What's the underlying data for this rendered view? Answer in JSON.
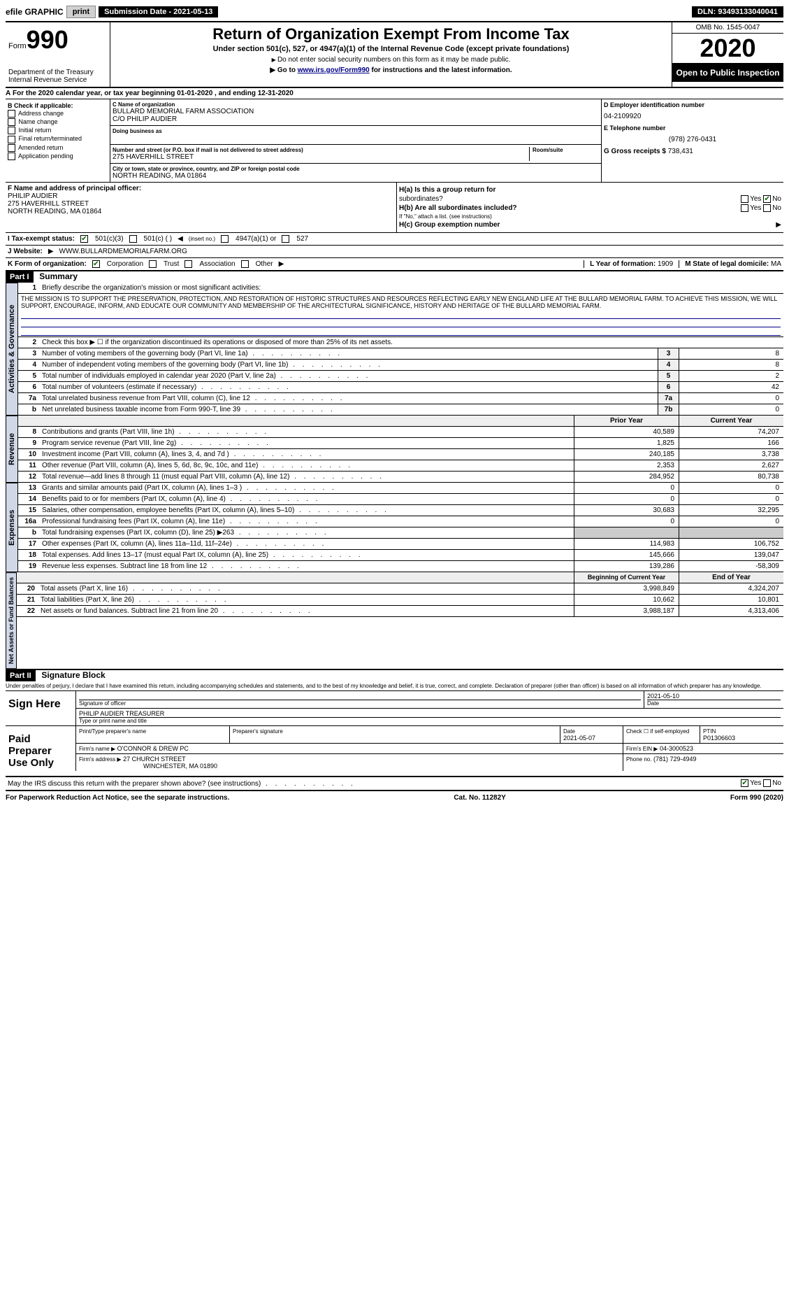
{
  "topbar": {
    "efile_label": "efile GRAPHIC",
    "print_btn": "print",
    "sub_date_label": "Submission Date - 2021-05-13",
    "dln": "DLN: 93493133040041"
  },
  "header": {
    "form_label": "Form",
    "form_num": "990",
    "dept1": "Department of the Treasury",
    "dept2": "Internal Revenue Service",
    "title": "Return of Organization Exempt From Income Tax",
    "subtitle": "Under section 501(c), 527, or 4947(a)(1) of the Internal Revenue Code (except private foundations)",
    "note1": "Do not enter social security numbers on this form as it may be made public.",
    "note2_pre": "Go to ",
    "note2_link": "www.irs.gov/Form990",
    "note2_post": " for instructions and the latest information.",
    "omb": "OMB No. 1545-0047",
    "year": "2020",
    "open_public": "Open to Public Inspection"
  },
  "section_a": {
    "period": "For the 2020 calendar year, or tax year beginning 01-01-2020    , and ending 12-31-2020",
    "b_label": "B Check if applicable:",
    "b_items": [
      "Address change",
      "Name change",
      "Initial return",
      "Final return/terminated",
      "Amended return",
      "Application pending"
    ],
    "c_name_label": "C Name of organization",
    "c_name": "BULLARD MEMORIAL FARM ASSOCIATION",
    "c_co": "C/O PHILIP AUDIER",
    "c_dba_label": "Doing business as",
    "c_addr_label": "Number and street (or P.O. box if mail is not delivered to street address)",
    "c_room_label": "Room/suite",
    "c_addr": "275 HAVERHILL STREET",
    "c_city_label": "City or town, state or province, country, and ZIP or foreign postal code",
    "c_city": "NORTH READING, MA  01864",
    "d_ein_label": "D Employer identification number",
    "d_ein": "04-2109920",
    "e_tel_label": "E Telephone number",
    "e_tel": "(978) 276-0431",
    "g_gross_label": "G Gross receipts $",
    "g_gross": "738,431",
    "f_label": "F  Name and address of principal officer:",
    "f_name": "PHILIP AUDIER",
    "f_addr1": "275 HAVERHILL STREET",
    "f_addr2": "NORTH READING, MA  01864",
    "ha_label": "H(a)  Is this a group return for",
    "ha_sub": "subordinates?",
    "hb_label": "H(b)  Are all subordinates included?",
    "hb_note": "If \"No,\" attach a list. (see instructions)",
    "hc_label": "H(c)  Group exemption number",
    "yes": "Yes",
    "no": "No",
    "i_label": "I    Tax-exempt status:",
    "i_501c3": "501(c)(3)",
    "i_501c": "501(c) (  )",
    "i_insert": "(insert no.)",
    "i_4947": "4947(a)(1) or",
    "i_527": "527",
    "j_label": "J    Website:",
    "j_val": "WWW.BULLARDMEMORIALFARM.ORG",
    "k_label": "K Form of organization:",
    "k_corp": "Corporation",
    "k_trust": "Trust",
    "k_assoc": "Association",
    "k_other": "Other",
    "l_label": "L Year of formation:",
    "l_val": "1909",
    "m_label": "M State of legal domicile:",
    "m_val": "MA"
  },
  "part1": {
    "title": "Part I",
    "heading": "Summary",
    "vtab_ag": "Activities & Governance",
    "vtab_rev": "Revenue",
    "vtab_exp": "Expenses",
    "vtab_na": "Net Assets or Fund Balances",
    "line1_label": "Briefly describe the organization's mission or most significant activities:",
    "mission": "THE MISSION IS TO SUPPORT THE PRESERVATION, PROTECTION, AND RESTORATION OF HISTORIC STRUCTURES AND RESOURCES REFLECTING EARLY NEW ENGLAND LIFE AT THE BULLARD MEMORIAL FARM. TO ACHIEVE THIS MISSION, WE WILL SUPPORT, ENCOURAGE, INFORM, AND EDUCATE OUR COMMUNITY AND MEMBERSHIP OF THE ARCHITECTURAL SIGNIFICANCE, HISTORY AND HERITAGE OF THE BULLARD MEMORIAL FARM.",
    "line2": "Check this box ▶ ☐ if the organization discontinued its operations or disposed of more than 25% of its net assets.",
    "rows_ag": [
      {
        "n": "3",
        "t": "Number of voting members of the governing body (Part VI, line 1a)",
        "c": "3",
        "v": "8"
      },
      {
        "n": "4",
        "t": "Number of independent voting members of the governing body (Part VI, line 1b)",
        "c": "4",
        "v": "8"
      },
      {
        "n": "5",
        "t": "Total number of individuals employed in calendar year 2020 (Part V, line 2a)",
        "c": "5",
        "v": "2"
      },
      {
        "n": "6",
        "t": "Total number of volunteers (estimate if necessary)",
        "c": "6",
        "v": "42"
      },
      {
        "n": "7a",
        "t": "Total unrelated business revenue from Part VIII, column (C), line 12",
        "c": "7a",
        "v": "0"
      },
      {
        "n": "b",
        "t": "Net unrelated business taxable income from Form 990-T, line 39",
        "c": "7b",
        "v": "0"
      }
    ],
    "hdr_prior": "Prior Year",
    "hdr_curr": "Current Year",
    "rows_rev": [
      {
        "n": "8",
        "t": "Contributions and grants (Part VIII, line 1h)",
        "p": "40,589",
        "c": "74,207"
      },
      {
        "n": "9",
        "t": "Program service revenue (Part VIII, line 2g)",
        "p": "1,825",
        "c": "166"
      },
      {
        "n": "10",
        "t": "Investment income (Part VIII, column (A), lines 3, 4, and 7d )",
        "p": "240,185",
        "c": "3,738"
      },
      {
        "n": "11",
        "t": "Other revenue (Part VIII, column (A), lines 5, 6d, 8c, 9c, 10c, and 11e)",
        "p": "2,353",
        "c": "2,627"
      },
      {
        "n": "12",
        "t": "Total revenue—add lines 8 through 11 (must equal Part VIII, column (A), line 12)",
        "p": "284,952",
        "c": "80,738"
      }
    ],
    "rows_exp": [
      {
        "n": "13",
        "t": "Grants and similar amounts paid (Part IX, column (A), lines 1–3 )",
        "p": "0",
        "c": "0"
      },
      {
        "n": "14",
        "t": "Benefits paid to or for members (Part IX, column (A), line 4)",
        "p": "0",
        "c": "0"
      },
      {
        "n": "15",
        "t": "Salaries, other compensation, employee benefits (Part IX, column (A), lines 5–10)",
        "p": "30,683",
        "c": "32,295"
      },
      {
        "n": "16a",
        "t": "Professional fundraising fees (Part IX, column (A), line 11e)",
        "p": "0",
        "c": "0"
      },
      {
        "n": "b",
        "t": "Total fundraising expenses (Part IX, column (D), line 25) ▶263",
        "p": "",
        "c": ""
      },
      {
        "n": "17",
        "t": "Other expenses (Part IX, column (A), lines 11a–11d, 11f–24e)",
        "p": "114,983",
        "c": "106,752"
      },
      {
        "n": "18",
        "t": "Total expenses. Add lines 13–17 (must equal Part IX, column (A), line 25)",
        "p": "145,666",
        "c": "139,047"
      },
      {
        "n": "19",
        "t": "Revenue less expenses. Subtract line 18 from line 12",
        "p": "139,286",
        "c": "-58,309"
      }
    ],
    "hdr_beg": "Beginning of Current Year",
    "hdr_end": "End of Year",
    "rows_na": [
      {
        "n": "20",
        "t": "Total assets (Part X, line 16)",
        "p": "3,998,849",
        "c": "4,324,207"
      },
      {
        "n": "21",
        "t": "Total liabilities (Part X, line 26)",
        "p": "10,662",
        "c": "10,801"
      },
      {
        "n": "22",
        "t": "Net assets or fund balances. Subtract line 21 from line 20",
        "p": "3,988,187",
        "c": "4,313,406"
      }
    ]
  },
  "part2": {
    "title": "Part II",
    "heading": "Signature Block",
    "declaration": "Under penalties of perjury, I declare that I have examined this return, including accompanying schedules and statements, and to the best of my knowledge and belief, it is true, correct, and complete. Declaration of preparer (other than officer) is based on all information of which preparer has any knowledge.",
    "sign_here": "Sign Here",
    "sig_officer_label": "Signature of officer",
    "sig_date": "2021-05-10",
    "sig_date_label": "Date",
    "officer_name": "PHILIP AUDIER  TREASURER",
    "officer_name_label": "Type or print name and title",
    "paid_prep": "Paid Preparer Use Only",
    "prep_name_label": "Print/Type preparer's name",
    "prep_sig_label": "Preparer's signature",
    "prep_date_label": "Date",
    "prep_date": "2021-05-07",
    "prep_check_label": "Check ☐ if self-employed",
    "ptin_label": "PTIN",
    "ptin": "P01306603",
    "firm_name_label": "Firm's name    ▶",
    "firm_name": "O'CONNOR & DREW PC",
    "firm_ein_label": "Firm's EIN ▶",
    "firm_ein": "04-3000523",
    "firm_addr_label": "Firm's address ▶",
    "firm_addr1": "27 CHURCH STREET",
    "firm_addr2": "WINCHESTER, MA  01890",
    "firm_phone_label": "Phone no.",
    "firm_phone": "(781) 729-4949",
    "discuss": "May the IRS discuss this return with the preparer shown above? (see instructions)",
    "yes": "Yes",
    "no": "No"
  },
  "footer": {
    "pra": "For Paperwork Reduction Act Notice, see the separate instructions.",
    "cat": "Cat. No. 11282Y",
    "form": "Form 990 (2020)"
  }
}
